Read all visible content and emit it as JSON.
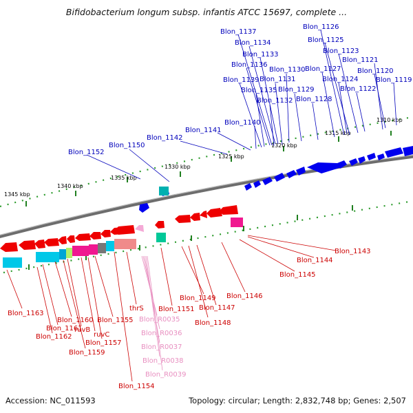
{
  "title": "Bifidobacterium longum subsp. infantis ATCC 15697, complete ...",
  "footer": {
    "accession": "Accession: NC_011593",
    "summary": "Topology: circular; Length: 2,832,748 bp; Genes: 2,507"
  },
  "colors": {
    "forward_label": "#0000bb",
    "reverse_label": "#cc0000",
    "rna_label": "#e88fc0",
    "forward_gene": "#0000ee",
    "reverse_gene": "#ee0000",
    "axis": "#2a9a2a",
    "backbone": "#777777"
  },
  "ruler": {
    "upper_ticks": [
      "1310 kbp",
      "1315 kbp",
      "1320 kbp",
      "1325 kbp",
      "1330 kbp",
      "1335 kbp",
      "1340 kbp",
      "1345 kbp"
    ]
  },
  "forward_labels": [
    "Blon_1126",
    "Blon_1125",
    "Blon_1137",
    "Blon_1134",
    "Blon_1123",
    "Blon_1133",
    "Blon_1121",
    "Blon_1136",
    "Blon_1130",
    "Blon_1127",
    "Blon_1120",
    "Blon_1139",
    "Blon_1131",
    "Blon_1124",
    "Blon_1119",
    "Blon_1135",
    "Blon_1129",
    "Blon_1122",
    "Blon_1132",
    "Blon_1128",
    "Blon_1140",
    "Blon_1141",
    "Blon_1142",
    "Blon_1150",
    "Blon_1152"
  ],
  "reverse_labels": [
    "Blon_1143",
    "Blon_1144",
    "Blon_1145",
    "Blon_1146",
    "Blon_1149",
    "Blon_1147",
    "Blon_1148",
    "Blon_1151",
    "thrS",
    "Blon_1155",
    "Blon_1160",
    "Blon_1163",
    "Blon_1161",
    "ruvB",
    "ruvC",
    "Blon_1162",
    "Blon_1157",
    "Blon_1159",
    "Blon_1154"
  ],
  "rna_labels": [
    "Blon_R0035",
    "Blon_R0036",
    "Blon_R0037",
    "Blon_R0038",
    "Blon_R0039"
  ]
}
